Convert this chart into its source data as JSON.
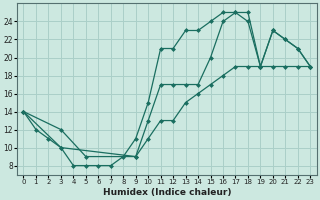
{
  "xlabel": "Humidex (Indice chaleur)",
  "background_color": "#cce8e0",
  "grid_color": "#aacfc8",
  "line_color": "#1a6e60",
  "xlim": [
    -0.5,
    23.5
  ],
  "ylim": [
    7,
    26
  ],
  "xticks": [
    0,
    1,
    2,
    3,
    4,
    5,
    6,
    7,
    8,
    9,
    10,
    11,
    12,
    13,
    14,
    15,
    16,
    17,
    18,
    19,
    20,
    21,
    22,
    23
  ],
  "yticks": [
    8,
    10,
    12,
    14,
    16,
    18,
    20,
    22,
    24
  ],
  "line1_x": [
    0,
    1,
    2,
    3,
    4,
    5,
    6,
    7,
    8,
    9,
    10,
    11,
    12,
    13,
    14,
    15,
    16,
    17,
    18,
    19,
    20,
    21,
    22,
    23
  ],
  "line1_y": [
    14,
    12,
    11,
    10,
    8,
    8,
    8,
    8,
    9,
    11,
    15,
    21,
    21,
    23,
    23,
    24,
    25,
    25,
    24,
    19,
    23,
    22,
    21,
    19
  ],
  "line2_x": [
    0,
    3,
    5,
    9,
    10,
    11,
    12,
    13,
    14,
    15,
    16,
    17,
    18,
    19,
    20,
    21,
    22,
    23
  ],
  "line2_y": [
    14,
    12,
    9,
    9,
    13,
    17,
    17,
    17,
    17,
    20,
    24,
    25,
    25,
    19,
    23,
    22,
    21,
    19
  ],
  "line3_x": [
    0,
    3,
    9,
    10,
    11,
    12,
    13,
    14,
    15,
    16,
    17,
    18,
    19,
    20,
    21,
    22,
    23
  ],
  "line3_y": [
    14,
    10,
    9,
    11,
    13,
    13,
    15,
    16,
    17,
    18,
    19,
    19,
    19,
    19,
    19,
    19,
    19
  ]
}
